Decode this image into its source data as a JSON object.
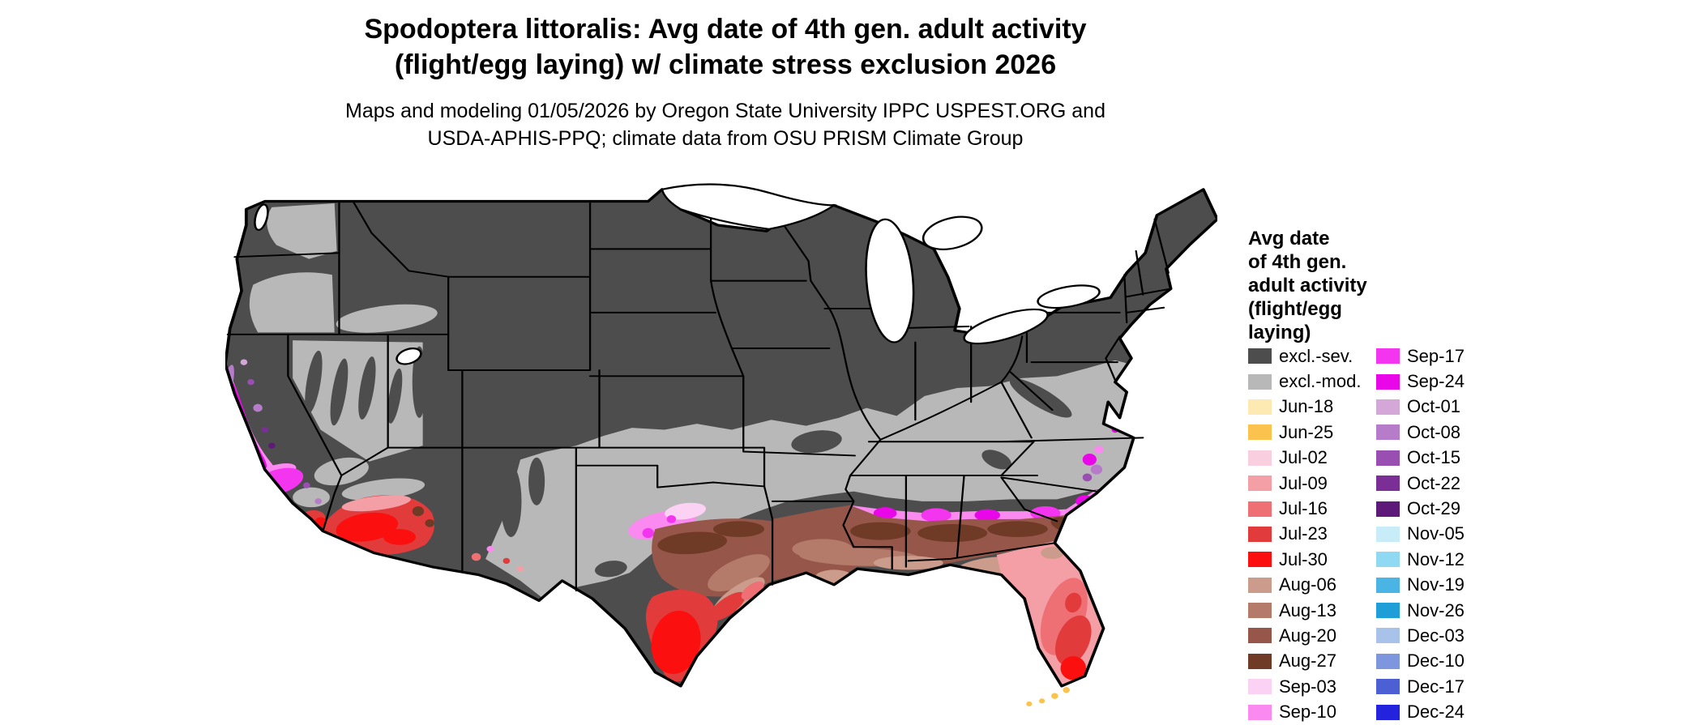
{
  "header": {
    "title_line1": "Spodoptera littoralis: Avg date of 4th gen. adult activity",
    "title_line2": "(flight/egg laying) w/ climate stress exclusion 2026",
    "subtitle_line1": "Maps and modeling 01/05/2026 by Oregon State University IPPC USPEST.ORG and",
    "subtitle_line2": "USDA-APHIS-PPQ; climate data from OSU PRISM Climate Group"
  },
  "legend": {
    "title_lines": [
      "Avg date",
      "of 4th gen.",
      "adult activity",
      "(flight/egg",
      "laying)"
    ],
    "column1": [
      {
        "label": "excl.-sev.",
        "color": "#4d4d4d"
      },
      {
        "label": "excl.-mod.",
        "color": "#b8b8b8"
      },
      {
        "label": "Jun-18",
        "color": "#fdeab2"
      },
      {
        "label": "Jun-25",
        "color": "#fbc34d"
      },
      {
        "label": "Jul-02",
        "color": "#f9cede"
      },
      {
        "label": "Jul-09",
        "color": "#f49fa6"
      },
      {
        "label": "Jul-16",
        "color": "#ee6f74"
      },
      {
        "label": "Jul-23",
        "color": "#e23b3b"
      },
      {
        "label": "Jul-30",
        "color": "#fb0f0f"
      },
      {
        "label": "Aug-06",
        "color": "#cb9b8b"
      },
      {
        "label": "Aug-13",
        "color": "#b47a6a"
      },
      {
        "label": "Aug-20",
        "color": "#96574a"
      },
      {
        "label": "Aug-27",
        "color": "#6f3a26"
      },
      {
        "label": "Sep-03",
        "color": "#fbd2f3"
      },
      {
        "label": "Sep-10",
        "color": "#fb8af0"
      }
    ],
    "column2": [
      {
        "label": "Sep-17",
        "color": "#f435f0"
      },
      {
        "label": "Sep-24",
        "color": "#e906e9"
      },
      {
        "label": "Oct-01",
        "color": "#d5a6d8"
      },
      {
        "label": "Oct-08",
        "color": "#b77cc9"
      },
      {
        "label": "Oct-15",
        "color": "#984fb1"
      },
      {
        "label": "Oct-22",
        "color": "#7b2f96"
      },
      {
        "label": "Oct-29",
        "color": "#5e1a78"
      },
      {
        "label": "Nov-05",
        "color": "#c9ecf9"
      },
      {
        "label": "Nov-12",
        "color": "#8fd9f2"
      },
      {
        "label": "Nov-19",
        "color": "#4ab5e5"
      },
      {
        "label": "Nov-26",
        "color": "#1f9ed8"
      },
      {
        "label": "Dec-03",
        "color": "#a9c2ea"
      },
      {
        "label": "Dec-10",
        "color": "#7d96dd"
      },
      {
        "label": "Dec-17",
        "color": "#4c5fd3"
      },
      {
        "label": "Dec-24",
        "color": "#2323dd"
      }
    ]
  }
}
